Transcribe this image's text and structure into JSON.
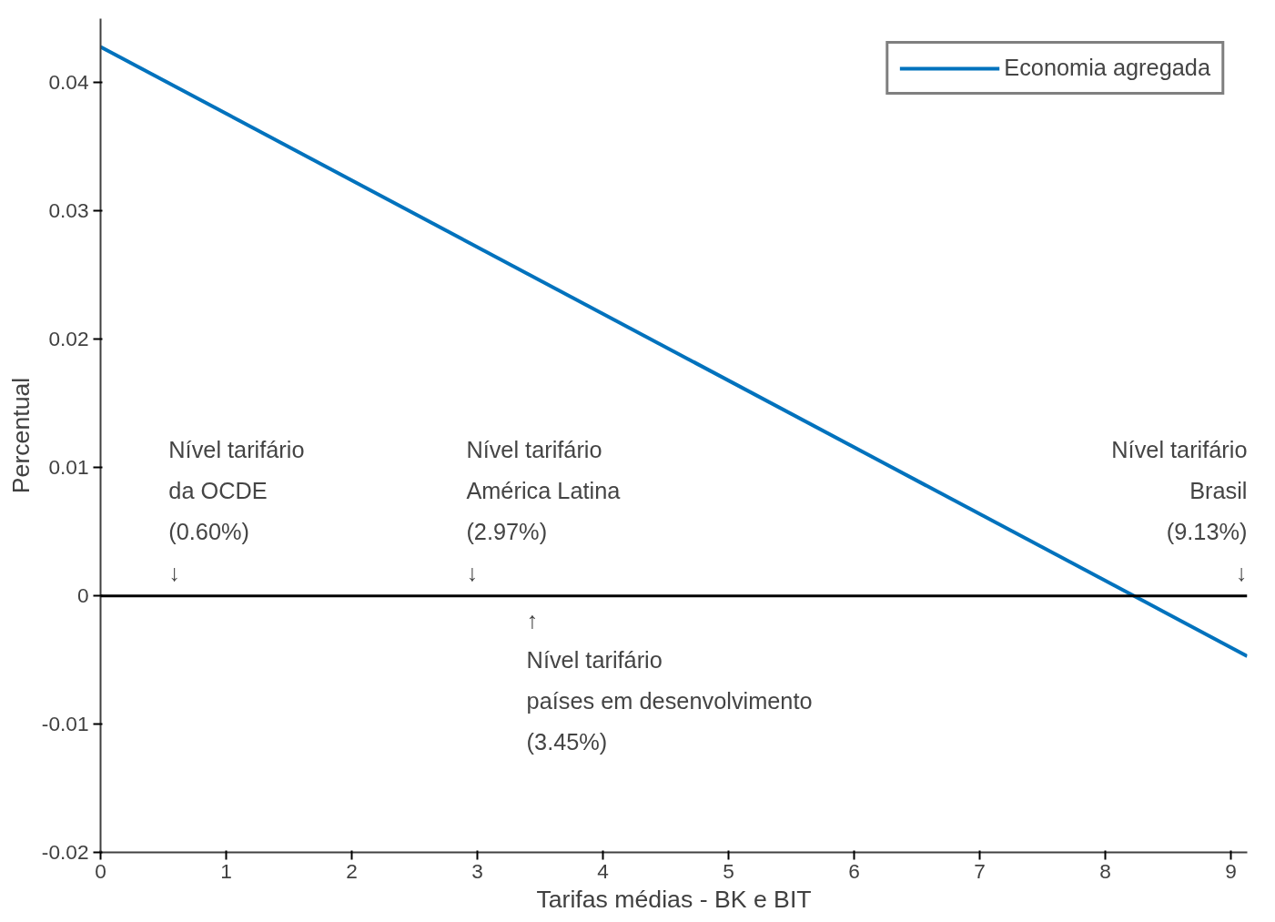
{
  "chart_data": {
    "type": "line",
    "xlabel": "Tarifas médias - BK e BIT",
    "ylabel": "Percentual",
    "x": [
      0,
      9.13
    ],
    "series": [
      {
        "name": "Economia agregada",
        "color": "#0072bd",
        "values": [
          0.0428,
          -0.0047
        ]
      }
    ],
    "xlim": [
      0,
      9.13
    ],
    "ylim": [
      -0.02,
      0.045
    ],
    "xticks": [
      0,
      1,
      2,
      3,
      4,
      5,
      6,
      7,
      8,
      9
    ],
    "yticks": [
      -0.02,
      -0.01,
      0,
      0.01,
      0.02,
      0.03,
      0.04
    ],
    "ref_lines": [
      {
        "axis": "y",
        "value": 0,
        "color": "#000000"
      }
    ],
    "annotations": [
      {
        "text": "Nível tarifário\nda OCDE\n(0.60%)\n↓",
        "x": 0.6,
        "y": 0
      },
      {
        "text": "Nível tarifário\nAmérica Latina\n(2.97%)\n↓",
        "x": 2.97,
        "y": 0
      },
      {
        "text": "↑\nNível tarifário\npaíses em desenvolvimento\n(3.45%)",
        "x": 3.45,
        "y": 0
      },
      {
        "text": "Nível tarifário\nBrasil\n(9.13%)\n↓",
        "x": 9.13,
        "y": 0
      }
    ],
    "grid": false,
    "legend": "top right"
  }
}
